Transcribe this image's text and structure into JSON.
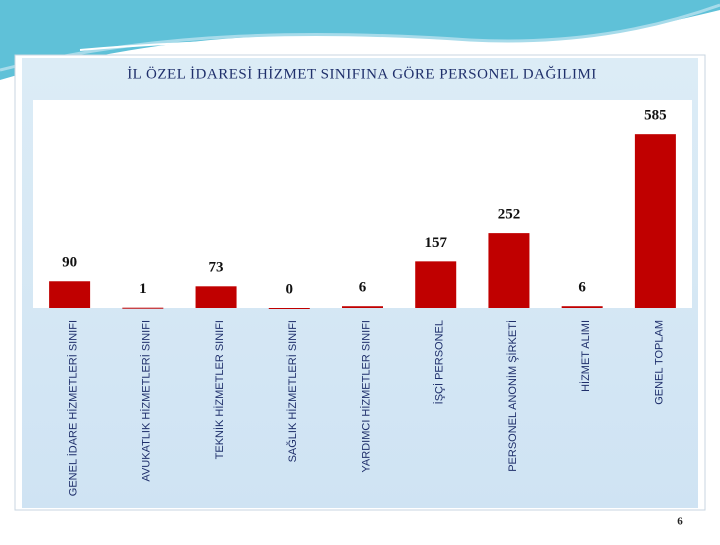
{
  "chart_data": {
    "type": "bar",
    "title": "İL ÖZEL İDARESİ HİZMET SINIFINA GÖRE PERSONEL DAĞILIMI",
    "categories": [
      "GENEL İDARE HİZMETLERİ SINIFI",
      "AVUKATLIK HİZMETLERİ SINIFI",
      "TEKNİK HİZMETLER SINIFI",
      "SAĞLIK HİZMETLERİ SINIFI",
      "YARDIMCI HİZMETLER SINIFI",
      "İŞÇİ PERSONEL",
      "PERSONEL ANONİM ŞİRKETİ",
      "HİZMET ALIMI",
      "GENEL TOPLAM"
    ],
    "values": [
      90,
      1,
      73,
      0,
      6,
      157,
      252,
      6,
      585
    ],
    "color": "#c00000",
    "ylim": [
      0,
      700
    ]
  },
  "page_number": "6"
}
